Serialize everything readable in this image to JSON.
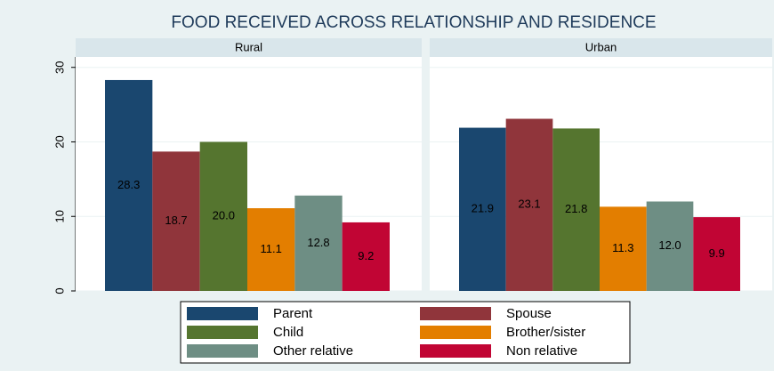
{
  "chart_data": {
    "type": "bar",
    "title": "FOOD RECEIVED ACROSS RELATIONSHIP AND RESIDENCE",
    "categories": [
      "Rural",
      "Urban"
    ],
    "series": [
      {
        "name": "Parent",
        "color": "#1a476f",
        "values": [
          28.3,
          21.9
        ],
        "value_labels": [
          "28.3",
          "21.9"
        ]
      },
      {
        "name": "Spouse",
        "color": "#90353b",
        "values": [
          18.7,
          23.1
        ],
        "value_labels": [
          "18.7",
          "23.1"
        ]
      },
      {
        "name": "Child",
        "color": "#55752f",
        "values": [
          20.0,
          21.8
        ],
        "value_labels": [
          "20.0",
          "21.8"
        ]
      },
      {
        "name": "Brother/sister",
        "color": "#e37e00",
        "values": [
          11.1,
          11.3
        ],
        "value_labels": [
          "11.1",
          "11.3"
        ]
      },
      {
        "name": "Other relative",
        "color": "#6e8e84",
        "values": [
          12.8,
          12.0
        ],
        "value_labels": [
          "12.8",
          "12.0"
        ]
      },
      {
        "name": "Non relative",
        "color": "#c10534",
        "values": [
          9.2,
          9.9
        ],
        "value_labels": [
          "9.2",
          "9.9"
        ]
      }
    ],
    "ylim": [
      0,
      31.4
    ],
    "yticks": [
      0,
      10,
      20,
      30
    ],
    "grid": true,
    "legend": "bottom"
  }
}
